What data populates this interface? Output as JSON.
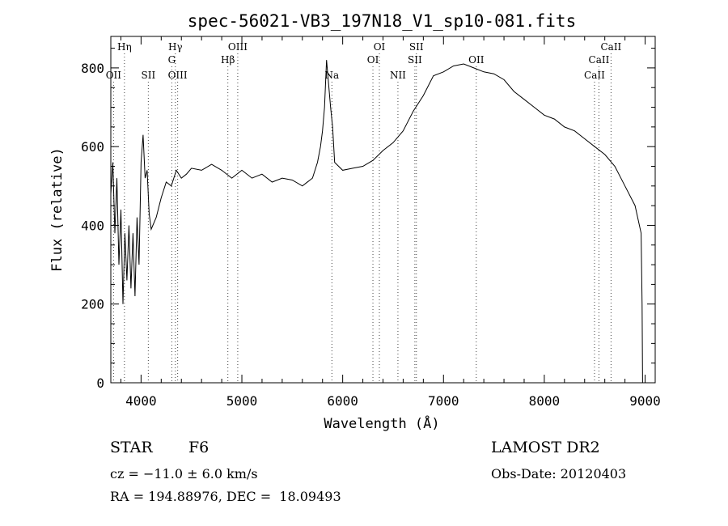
{
  "chart_data": {
    "type": "line",
    "title": "spec-56021-VB3_197N18_V1_sp10-081.fits",
    "xlabel": "Wavelength (Å)",
    "ylabel": "Flux (relative)",
    "xlim": [
      3700,
      9100
    ],
    "ylim": [
      0,
      880
    ],
    "xticks": [
      4000,
      5000,
      6000,
      7000,
      8000,
      9000
    ],
    "yticks": [
      0,
      200,
      400,
      600,
      800
    ],
    "grid": false,
    "series": [
      {
        "values": [
          [
            3700,
            480
          ],
          [
            3720,
            560
          ],
          [
            3740,
            380
          ],
          [
            3760,
            520
          ],
          [
            3780,
            300
          ],
          [
            3800,
            440
          ],
          [
            3820,
            200
          ],
          [
            3840,
            380
          ],
          [
            3860,
            260
          ],
          [
            3880,
            400
          ],
          [
            3900,
            240
          ],
          [
            3920,
            380
          ],
          [
            3940,
            220
          ],
          [
            3960,
            420
          ],
          [
            3980,
            300
          ],
          [
            4000,
            560
          ],
          [
            4020,
            630
          ],
          [
            4040,
            520
          ],
          [
            4060,
            540
          ],
          [
            4080,
            430
          ],
          [
            4100,
            390
          ],
          [
            4150,
            420
          ],
          [
            4200,
            470
          ],
          [
            4250,
            510
          ],
          [
            4300,
            500
          ],
          [
            4350,
            540
          ],
          [
            4400,
            520
          ],
          [
            4450,
            530
          ],
          [
            4500,
            545
          ],
          [
            4600,
            540
          ],
          [
            4700,
            555
          ],
          [
            4800,
            540
          ],
          [
            4900,
            520
          ],
          [
            5000,
            540
          ],
          [
            5100,
            520
          ],
          [
            5200,
            530
          ],
          [
            5300,
            510
          ],
          [
            5400,
            520
          ],
          [
            5500,
            515
          ],
          [
            5600,
            500
          ],
          [
            5700,
            520
          ],
          [
            5750,
            560
          ],
          [
            5780,
            600
          ],
          [
            5800,
            640
          ],
          [
            5820,
            700
          ],
          [
            5840,
            820
          ],
          [
            5860,
            760
          ],
          [
            5880,
            700
          ],
          [
            5900,
            650
          ],
          [
            5920,
            560
          ],
          [
            6000,
            540
          ],
          [
            6100,
            545
          ],
          [
            6200,
            550
          ],
          [
            6300,
            565
          ],
          [
            6400,
            590
          ],
          [
            6500,
            610
          ],
          [
            6600,
            640
          ],
          [
            6700,
            690
          ],
          [
            6800,
            730
          ],
          [
            6900,
            780
          ],
          [
            7000,
            790
          ],
          [
            7100,
            805
          ],
          [
            7200,
            810
          ],
          [
            7300,
            800
          ],
          [
            7400,
            790
          ],
          [
            7500,
            785
          ],
          [
            7600,
            770
          ],
          [
            7700,
            740
          ],
          [
            7800,
            720
          ],
          [
            7900,
            700
          ],
          [
            8000,
            680
          ],
          [
            8100,
            670
          ],
          [
            8200,
            650
          ],
          [
            8300,
            640
          ],
          [
            8400,
            620
          ],
          [
            8500,
            600
          ],
          [
            8600,
            580
          ],
          [
            8700,
            550
          ],
          [
            8800,
            500
          ],
          [
            8900,
            450
          ],
          [
            8960,
            380
          ],
          [
            8970,
            200
          ],
          [
            8975,
            0
          ]
        ]
      }
    ],
    "lines": [
      {
        "label": "Hη",
        "x": 3835,
        "row": 0
      },
      {
        "label": "OII",
        "x": 3727,
        "row": 3
      },
      {
        "label": "SII",
        "x": 4072,
        "row": 3
      },
      {
        "label": "Hγ",
        "x": 4340,
        "row": 0
      },
      {
        "label": "G",
        "x": 4305,
        "row": 1
      },
      {
        "label": "OIII",
        "x": 4363,
        "row": 3
      },
      {
        "label": "OIII",
        "x": 4959,
        "row": 0
      },
      {
        "label": "Hβ",
        "x": 4861,
        "row": 1
      },
      {
        "label": "Na",
        "x": 5893,
        "row": 3
      },
      {
        "label": "OI",
        "x": 6364,
        "row": 0
      },
      {
        "label": "OI",
        "x": 6300,
        "row": 1
      },
      {
        "label": "NII",
        "x": 6548,
        "row": 3
      },
      {
        "label": "SII",
        "x": 6731,
        "row": 0
      },
      {
        "label": "SII",
        "x": 6716,
        "row": 1
      },
      {
        "label": "OII",
        "x": 7325,
        "row": 1
      },
      {
        "label": "CaII",
        "x": 8662,
        "row": 0
      },
      {
        "label": "CaII",
        "x": 8542,
        "row": 1
      },
      {
        "label": "CaII",
        "x": 8498,
        "row": 2
      }
    ]
  },
  "info": {
    "class": "STAR",
    "subclass": "F6",
    "survey": "LAMOST DR2",
    "cz": "cz = −11.0 ± 6.0 km/s",
    "obs_date": "Obs-Date: 20120403",
    "coords": "RA = 194.88976, DEC =  18.09493"
  }
}
